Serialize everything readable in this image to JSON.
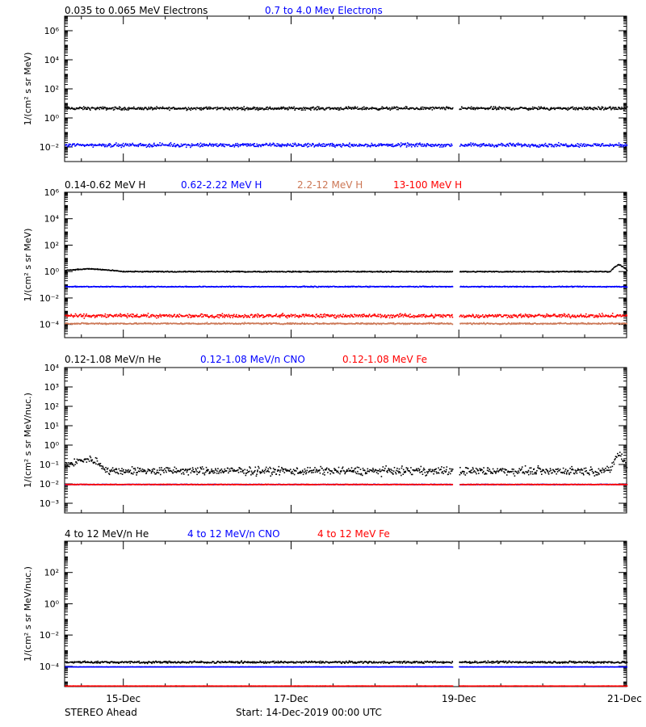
{
  "colors": {
    "black": "#000000",
    "blue": "#0000ff",
    "salmon": "#cc7755",
    "red": "#ff0000"
  },
  "footer": {
    "spacecraft": "STEREO Ahead",
    "start": "Start: 14-Dec-2019 00:00 UTC"
  },
  "x_axis": {
    "range_days": [
      14.3,
      21.0
    ],
    "ticks": [
      {
        "day": 15,
        "label": "15-Dec"
      },
      {
        "day": 17,
        "label": "17-Dec"
      },
      {
        "day": 19,
        "label": "19-Dec"
      },
      {
        "day": 21,
        "label": "21-Dec"
      }
    ],
    "data_gap_days": [
      18.92,
      19.0
    ]
  },
  "chart_data": [
    {
      "type": "scatter",
      "ylabel": "1/(cm² s sr MeV)",
      "yscale": "log",
      "ylim_exp": [
        -3,
        7
      ],
      "ytick_exps": [
        -2,
        0,
        2,
        4,
        6
      ],
      "legend": [
        {
          "text": "0.035 to 0.065 MeV Electrons",
          "color": "#000000"
        },
        {
          "text": "0.7 to 4.0 Mev Electrons",
          "color": "#0000ff"
        }
      ],
      "series": [
        {
          "name": "0.035 to 0.065 MeV Electrons",
          "color": "#000000",
          "level": 5.0,
          "scatter_decades": 0.15,
          "x": [
            14.3,
            21.0
          ],
          "y": [
            5.0,
            5.0
          ]
        },
        {
          "name": "0.7 to 4.0 Mev Electrons",
          "color": "#0000ff",
          "level": 0.015,
          "scatter_decades": 0.18,
          "x": [
            14.3,
            21.0
          ],
          "y": [
            0.015,
            0.015
          ]
        }
      ]
    },
    {
      "type": "scatter",
      "ylabel": "1/(cm² s sr MeV)",
      "yscale": "log",
      "ylim_exp": [
        -5,
        6
      ],
      "ytick_exps": [
        -4,
        -2,
        0,
        2,
        4,
        6
      ],
      "legend": [
        {
          "text": "0.14-0.62 MeV H",
          "color": "#000000"
        },
        {
          "text": "0.62-2.22 MeV H",
          "color": "#0000ff"
        },
        {
          "text": "2.2-12 MeV H",
          "color": "#cc7755"
        },
        {
          "text": "13-100 MeV H",
          "color": "#ff0000"
        }
      ],
      "series": [
        {
          "name": "0.14-0.62 MeV H",
          "color": "#000000",
          "level": 1.0,
          "scatter_decades": 0.05,
          "x": [
            14.3,
            14.6,
            15.0,
            20.8,
            20.9,
            21.0
          ],
          "y": [
            1.4,
            1.8,
            1.1,
            1.1,
            3.8,
            1.3
          ]
        },
        {
          "name": "0.62-2.22 MeV H",
          "color": "#0000ff",
          "level": 0.08,
          "scatter_decades": 0.05,
          "x": [
            14.3,
            21.0
          ],
          "y": [
            0.08,
            0.08
          ]
        },
        {
          "name": "2.2-12 MeV H",
          "color": "#cc7755",
          "level": 0.00013,
          "scatter_decades": 0.08,
          "x": [
            14.3,
            21.0
          ],
          "y": [
            0.00013,
            0.00013
          ]
        },
        {
          "name": "13-100 MeV H",
          "color": "#ff0000",
          "level": 0.0005,
          "scatter_decades": 0.2,
          "x": [
            14.3,
            21.0
          ],
          "y": [
            0.0005,
            0.0005
          ]
        }
      ]
    },
    {
      "type": "scatter",
      "ylabel": "1/(cm² s sr MeV/nuc.)",
      "yscale": "log",
      "ylim_exp": [
        -3.5,
        4
      ],
      "ytick_exps": [
        -3,
        -2,
        -1,
        0,
        1,
        2,
        3,
        4
      ],
      "legend": [
        {
          "text": "0.12-1.08 MeV/n He",
          "color": "#000000"
        },
        {
          "text": "0.12-1.08 MeV/n CNO",
          "color": "#0000ff"
        },
        {
          "text": "0.12-1.08 MeV Fe",
          "color": "#ff0000"
        }
      ],
      "series": [
        {
          "name": "0.12-1.08 MeV/n He",
          "color": "#000000",
          "level": 0.05,
          "scatter_decades": 0.3,
          "x": [
            14.3,
            14.6,
            14.8,
            20.8,
            20.9,
            21.0
          ],
          "y": [
            0.1,
            0.2,
            0.05,
            0.05,
            0.35,
            0.05
          ]
        },
        {
          "name": "0.12-1.08 MeV/n CNO",
          "color": "#0000ff",
          "level": 0.01,
          "scatter_decades": 0.02,
          "x": [
            14.3,
            21.0
          ],
          "y": [
            0.01,
            0.01
          ]
        },
        {
          "name": "0.12-1.08 MeV Fe",
          "color": "#ff0000",
          "level": 0.01,
          "scatter_decades": 0.02,
          "x": [
            14.3,
            21.0
          ],
          "y": [
            0.01,
            0.01
          ]
        }
      ]
    },
    {
      "type": "scatter",
      "ylabel": "1/(cm² s sr MeV/nuc.)",
      "yscale": "log",
      "ylim_exp": [
        -5.3,
        4
      ],
      "ytick_exps": [
        -4,
        -2,
        0,
        2
      ],
      "legend": [
        {
          "text": "4 to 12 MeV/n He",
          "color": "#000000"
        },
        {
          "text": "4 to 12 MeV/n CNO",
          "color": "#0000ff"
        },
        {
          "text": "4 to 12 MeV Fe",
          "color": "#ff0000"
        }
      ],
      "series": [
        {
          "name": "4 to 12 MeV/n He",
          "color": "#000000",
          "level": 0.0002,
          "scatter_decades": 0.1,
          "x": [
            14.3,
            21.0
          ],
          "y": [
            0.0002,
            0.0002
          ]
        },
        {
          "name": "4 to 12 MeV/n CNO",
          "color": "#0000ff",
          "level": 0.0001,
          "scatter_decades": 0.01,
          "x": [
            14.3,
            21.0
          ],
          "y": [
            0.0001,
            0.0001
          ]
        },
        {
          "name": "4 to 12 MeV Fe",
          "color": "#ff0000",
          "level": 6e-06,
          "scatter_decades": 0.01,
          "x": [
            14.3,
            21.0
          ],
          "y": [
            6e-06,
            6e-06
          ]
        }
      ]
    }
  ]
}
